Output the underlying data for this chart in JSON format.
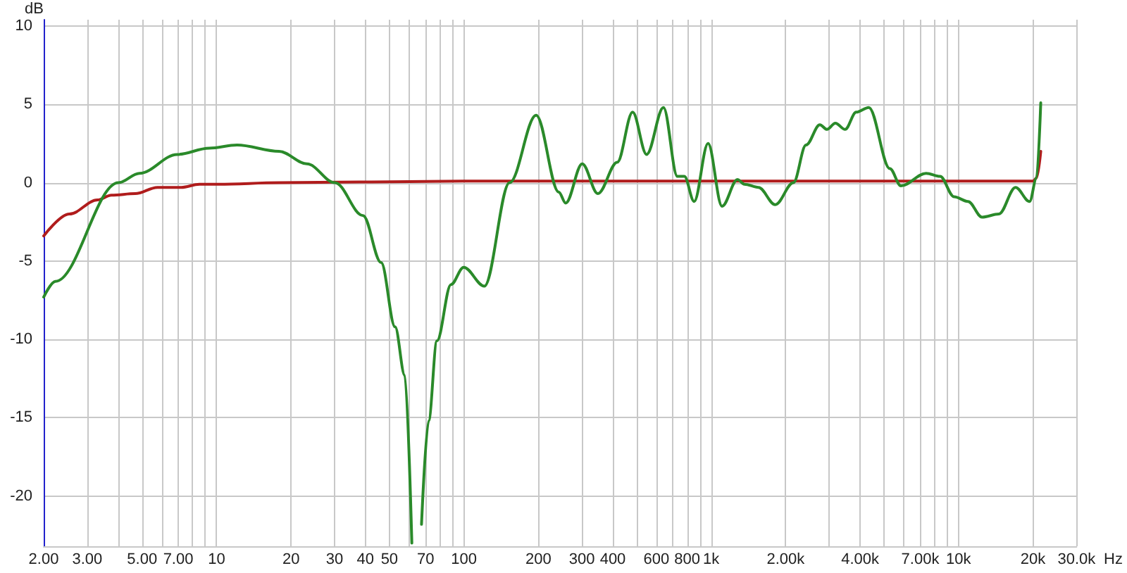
{
  "chart_data": {
    "type": "line",
    "ylabel": "dB",
    "xlabel": "Hz",
    "log": "x",
    "grid": true,
    "marker": "none",
    "line_style": "solid",
    "xlim": [
      2,
      30000
    ],
    "ylim": [
      -23.2,
      10.4
    ],
    "xticks": [
      {
        "value": 2,
        "label": "2.00"
      },
      {
        "value": 3,
        "label": "3.00"
      },
      {
        "value": 4,
        "label": null
      },
      {
        "value": 5,
        "label": "5.00"
      },
      {
        "value": 6,
        "label": null
      },
      {
        "value": 7,
        "label": "7.00"
      },
      {
        "value": 8,
        "label": null
      },
      {
        "value": 9,
        "label": null
      },
      10,
      20,
      30,
      40,
      50,
      {
        "value": 60,
        "label": null
      },
      70,
      {
        "value": 80,
        "label": null
      },
      {
        "value": 90,
        "label": null
      },
      100,
      200,
      300,
      400,
      {
        "value": 500,
        "label": null
      },
      600,
      {
        "value": 700,
        "label": null
      },
      800,
      {
        "value": 900,
        "label": null
      },
      {
        "value": 1000,
        "label": "1k"
      },
      {
        "value": 2000,
        "label": "2.00k"
      },
      {
        "value": 3000,
        "label": null
      },
      {
        "value": 4000,
        "label": "4.00k"
      },
      {
        "value": 5000,
        "label": null
      },
      {
        "value": 6000,
        "label": null
      },
      {
        "value": 7000,
        "label": "7.00k"
      },
      {
        "value": 8000,
        "label": null
      },
      {
        "value": 9000,
        "label": null
      },
      {
        "value": 10000,
        "label": "10k"
      },
      {
        "value": 20000,
        "label": "20k"
      },
      {
        "value": 30000,
        "label": "30.0k"
      }
    ],
    "yticks": [
      -20,
      -15,
      -10,
      -5,
      0,
      5,
      10
    ],
    "series": [
      {
        "color": "#b01c1c",
        "x": [
          2.0,
          2.54,
          3.3,
          3.76,
          4.69,
          5.77,
          7.2,
          8.53,
          10.2,
          17.9,
          100,
          1000,
          10000,
          20000,
          20670,
          21494
        ],
        "values": [
          -3.4,
          -2.0,
          -1.1,
          -0.8,
          -0.7,
          -0.3,
          -0.3,
          -0.1,
          -0.1,
          0,
          0.1,
          0.1,
          0.1,
          0.1,
          0.3,
          2.0
        ]
      },
      {
        "color": "#2a8a2a",
        "x": [
          2.0,
          2.23,
          4.01,
          4.88,
          6.93,
          9.34,
          12.1,
          17.9,
          23.2,
          30.1,
          39.1,
          46.3,
          52.7,
          57.7,
          61.6,
          64.1,
          67.4,
          72.0,
          77.8,
          88.7,
          99.8,
          121,
          153,
          196,
          242,
          258,
          301,
          348,
          417,
          481,
          548,
          641,
          730,
          779,
          853,
          971,
          1106,
          1277,
          1362,
          1553,
          1815,
          2149,
          2417,
          2750,
          2937,
          3176,
          3478,
          3857,
          4337,
          5275,
          5849,
          7396,
          8418,
          9594,
          10925,
          12443,
          14556,
          16998,
          19369,
          20670,
          21494
        ],
        "values": [
          -7.3,
          -6.3,
          0,
          0.6,
          1.8,
          2.2,
          2.4,
          2.0,
          1.2,
          0,
          -2.1,
          -5.1,
          -9.2,
          -12.3,
          -23.0,
          null,
          -21.8,
          -15.2,
          -10.1,
          -6.5,
          -5.4,
          -6.6,
          0,
          4.3,
          -0.6,
          -1.3,
          1.2,
          -0.7,
          1.3,
          4.5,
          1.8,
          4.8,
          0.4,
          0.4,
          -1.2,
          2.5,
          -1.5,
          0.2,
          -0.1,
          -0.3,
          -1.4,
          0,
          2.4,
          3.7,
          3.4,
          3.8,
          3.4,
          4.5,
          4.8,
          0.9,
          -0.2,
          0.6,
          0.4,
          -0.9,
          -1.2,
          -2.2,
          -2.0,
          -0.3,
          -1.2,
          0.3,
          5.1
        ]
      }
    ]
  }
}
